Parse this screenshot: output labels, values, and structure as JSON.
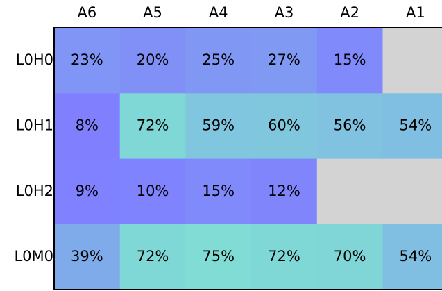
{
  "chart_data": {
    "type": "heatmap",
    "categories": [
      "A6",
      "A5",
      "A4",
      "A3",
      "A2",
      "A1"
    ],
    "series": [
      {
        "name": "L0H0",
        "values": [
          23,
          20,
          25,
          27,
          15,
          null
        ],
        "value_labels": [
          "23%",
          "20%",
          "25%",
          "27%",
          "15%",
          null
        ]
      },
      {
        "name": "L0H1",
        "values": [
          8,
          72,
          59,
          60,
          56,
          54
        ],
        "value_labels": [
          "8%",
          "72%",
          "59%",
          "60%",
          "56%",
          "54%"
        ]
      },
      {
        "name": "L0H2",
        "values": [
          9,
          10,
          15,
          12,
          null,
          null
        ],
        "value_labels": [
          "9%",
          "10%",
          "15%",
          "12%",
          null,
          null
        ]
      },
      {
        "name": "L0M0",
        "values": [
          39,
          72,
          75,
          72,
          70,
          54
        ],
        "value_labels": [
          "39%",
          "72%",
          "75%",
          "72%",
          "70%",
          "54%"
        ]
      }
    ],
    "colormap": [
      "#8080ff",
      "#80dcd4"
    ],
    "missing_color": "#d3d3d3"
  }
}
